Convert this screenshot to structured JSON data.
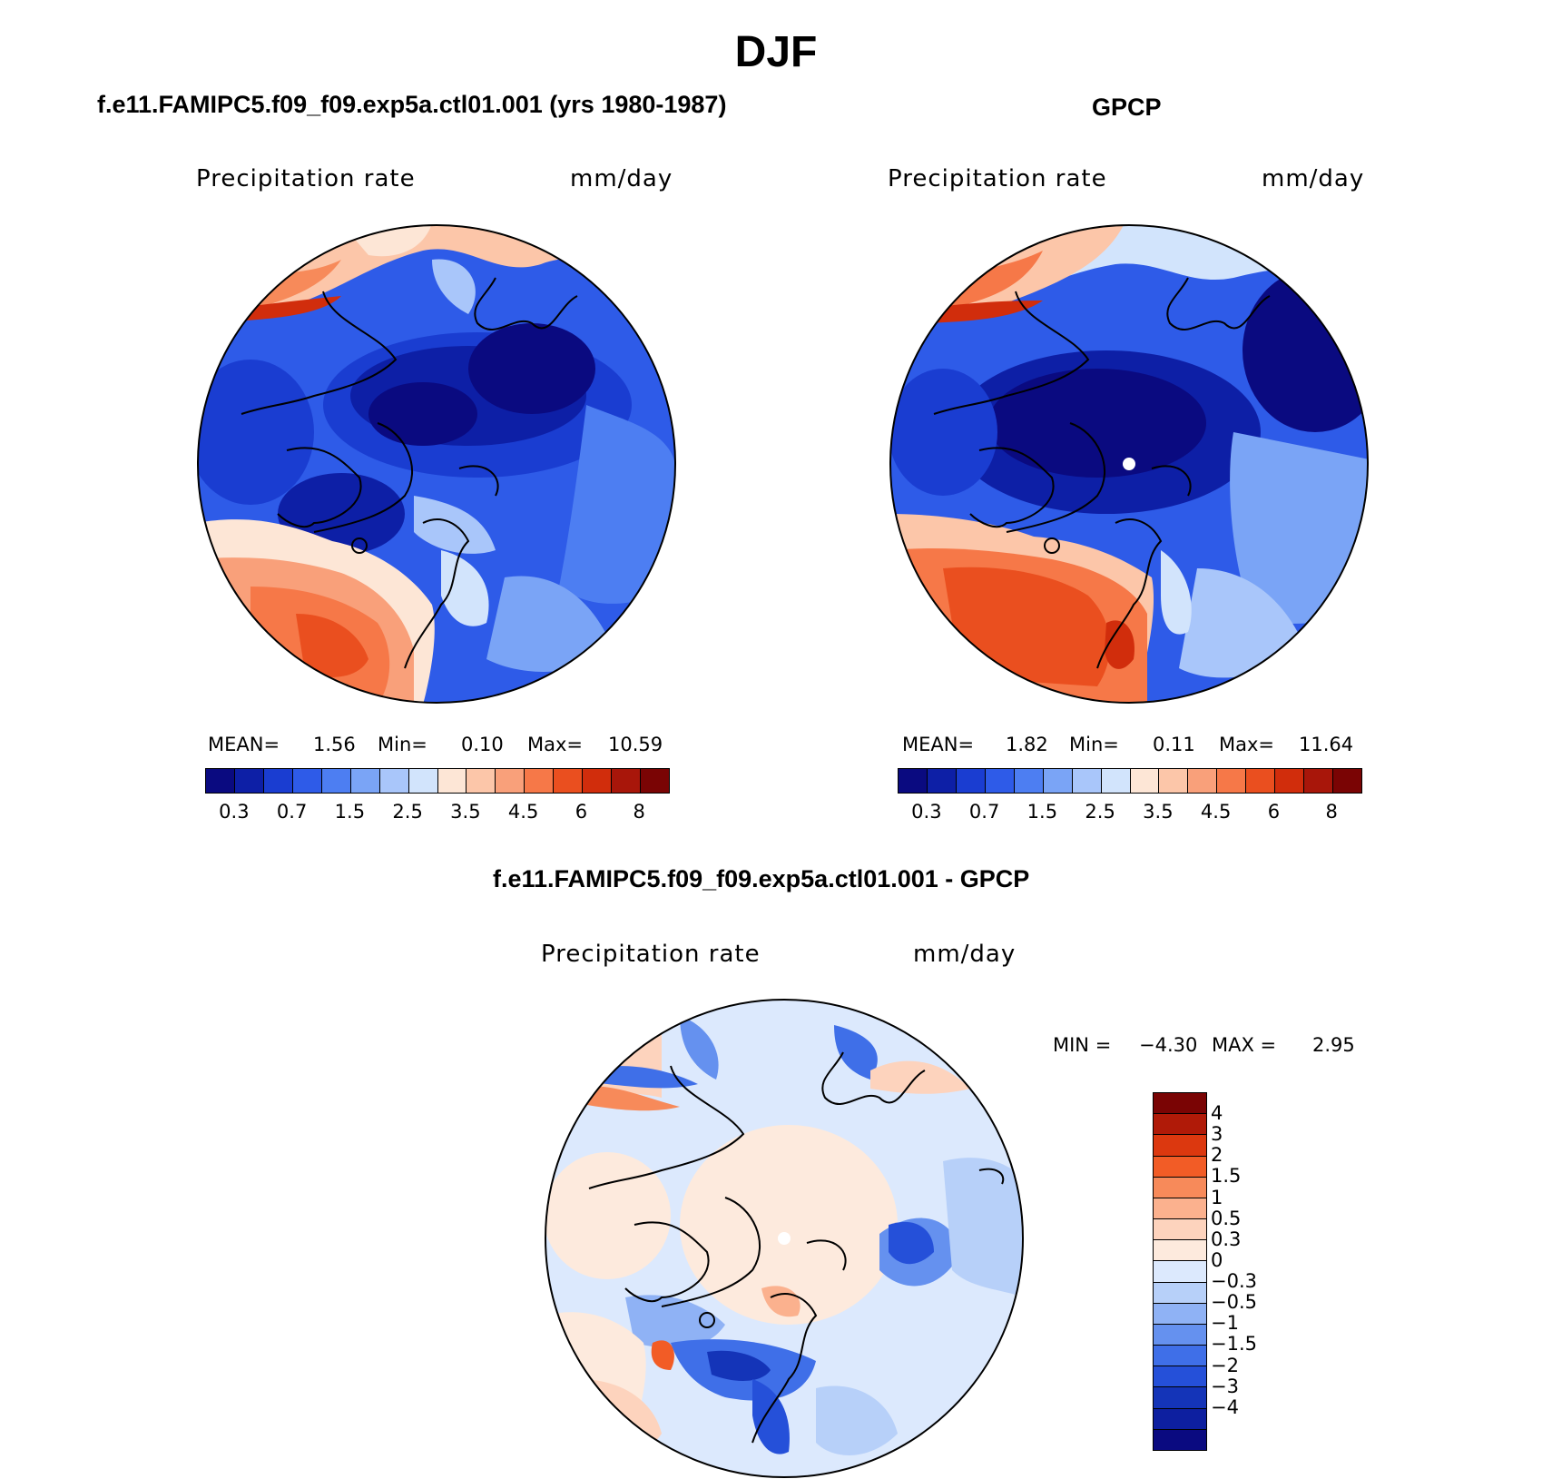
{
  "title": "DJF",
  "panels": [
    {
      "title": "f.e11.FAMIPC5.f09_f09.exp5a.ctl01.001 (yrs 1980-1987)",
      "left_label": "Precipitation rate",
      "right_label": "mm/day",
      "stats": {
        "mean_label": "MEAN=",
        "mean": "1.56",
        "min_label": "Min=",
        "min": "0.10",
        "max_label": "Max=",
        "max": "10.59"
      }
    },
    {
      "title": "GPCP",
      "left_label": "Precipitation rate",
      "right_label": "mm/day",
      "stats": {
        "mean_label": "MEAN=",
        "mean": "1.82",
        "min_label": "Min=",
        "min": "0.11",
        "max_label": "Max=",
        "max": "11.64"
      }
    },
    {
      "title": "f.e11.FAMIPC5.f09_f09.exp5a.ctl01.001 - GPCP",
      "left_label": "Precipitation rate",
      "right_label": "mm/day",
      "minmax": {
        "min_label": "MIN =",
        "min": "−4.30",
        "max_label": "MAX =",
        "max": "2.95"
      }
    }
  ],
  "colorbar_abs": {
    "colors": [
      "#0a0a80",
      "#0d1fa6",
      "#1a3dd1",
      "#2e5be8",
      "#4d7ef2",
      "#7aa4f6",
      "#a9c6fa",
      "#d2e4fc",
      "#fde6d6",
      "#fcc6a9",
      "#f9a07a",
      "#f67848",
      "#ea4f1f",
      "#d12d0c",
      "#a8160a",
      "#7a0404"
    ],
    "tick_labels": [
      "0.3",
      "0.7",
      "1.5",
      "2.5",
      "3.5",
      "4.5",
      "6",
      "8"
    ]
  },
  "colorbar_diff": {
    "colors": [
      "#7a0404",
      "#b01a08",
      "#dc380f",
      "#f25c26",
      "#f78a5a",
      "#fbb18e",
      "#fdd3bd",
      "#fdeadd",
      "#dce9fd",
      "#b7d0f9",
      "#8fb2f5",
      "#6591ef",
      "#3f6fe8",
      "#2550d9",
      "#1434b8",
      "#0d1fa0",
      "#0a0a80"
    ],
    "tick_labels": [
      "4",
      "3",
      "2",
      "1.5",
      "1",
      "0.5",
      "0.3",
      "0",
      "−0.3",
      "−0.5",
      "−1",
      "−1.5",
      "−2",
      "−3",
      "−4"
    ]
  }
}
